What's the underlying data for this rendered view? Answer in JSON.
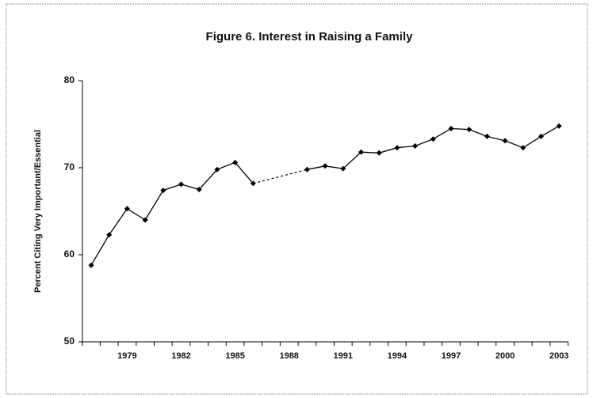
{
  "chart_data": {
    "type": "line",
    "title": "Figure 6. Interest in Raising a Family",
    "y_label": "Percent Citing Very Important/Essential",
    "categories": [
      null,
      null,
      "1979",
      null,
      null,
      "1982",
      null,
      null,
      "1985",
      null,
      null,
      "1988",
      null,
      null,
      "1991",
      null,
      null,
      "1994",
      null,
      null,
      "1997",
      null,
      null,
      "2000",
      null,
      null,
      "2003"
    ],
    "values": [
      58.8,
      62.3,
      65.3,
      64.0,
      67.4,
      68.1,
      67.5,
      69.8,
      70.6,
      68.2,
      null,
      null,
      69.8,
      70.2,
      69.9,
      71.8,
      71.7,
      72.3,
      72.5,
      73.3,
      74.5,
      74.4,
      73.6,
      73.1,
      72.3,
      73.6,
      74.8
    ],
    "color": "#000000",
    "ylim": [
      50,
      80
    ],
    "yticks": [
      50,
      60,
      70,
      80
    ]
  }
}
